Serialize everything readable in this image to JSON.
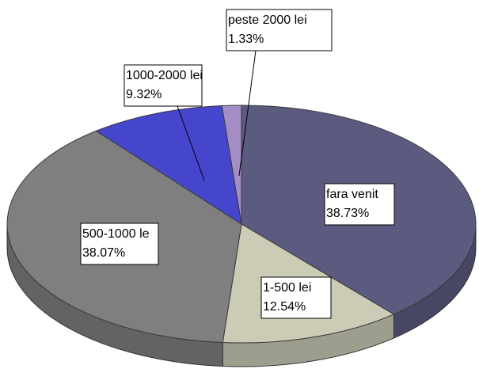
{
  "chart_data": {
    "type": "pie3d",
    "categories": [
      "fara venit",
      "1-500 lei",
      "500-1000 le",
      "1000-2000 lei",
      "peste 2000 lei"
    ],
    "values": [
      38.73,
      12.54,
      38.07,
      9.32,
      1.33
    ],
    "value_labels": [
      "38.73%",
      "12.54%",
      "38.07%",
      "9.32%",
      "1.33%"
    ],
    "colors": [
      "#5b5b80",
      "#cbcbb6",
      "#7f7f7f",
      "#4646cc",
      "#a48cc4"
    ]
  }
}
